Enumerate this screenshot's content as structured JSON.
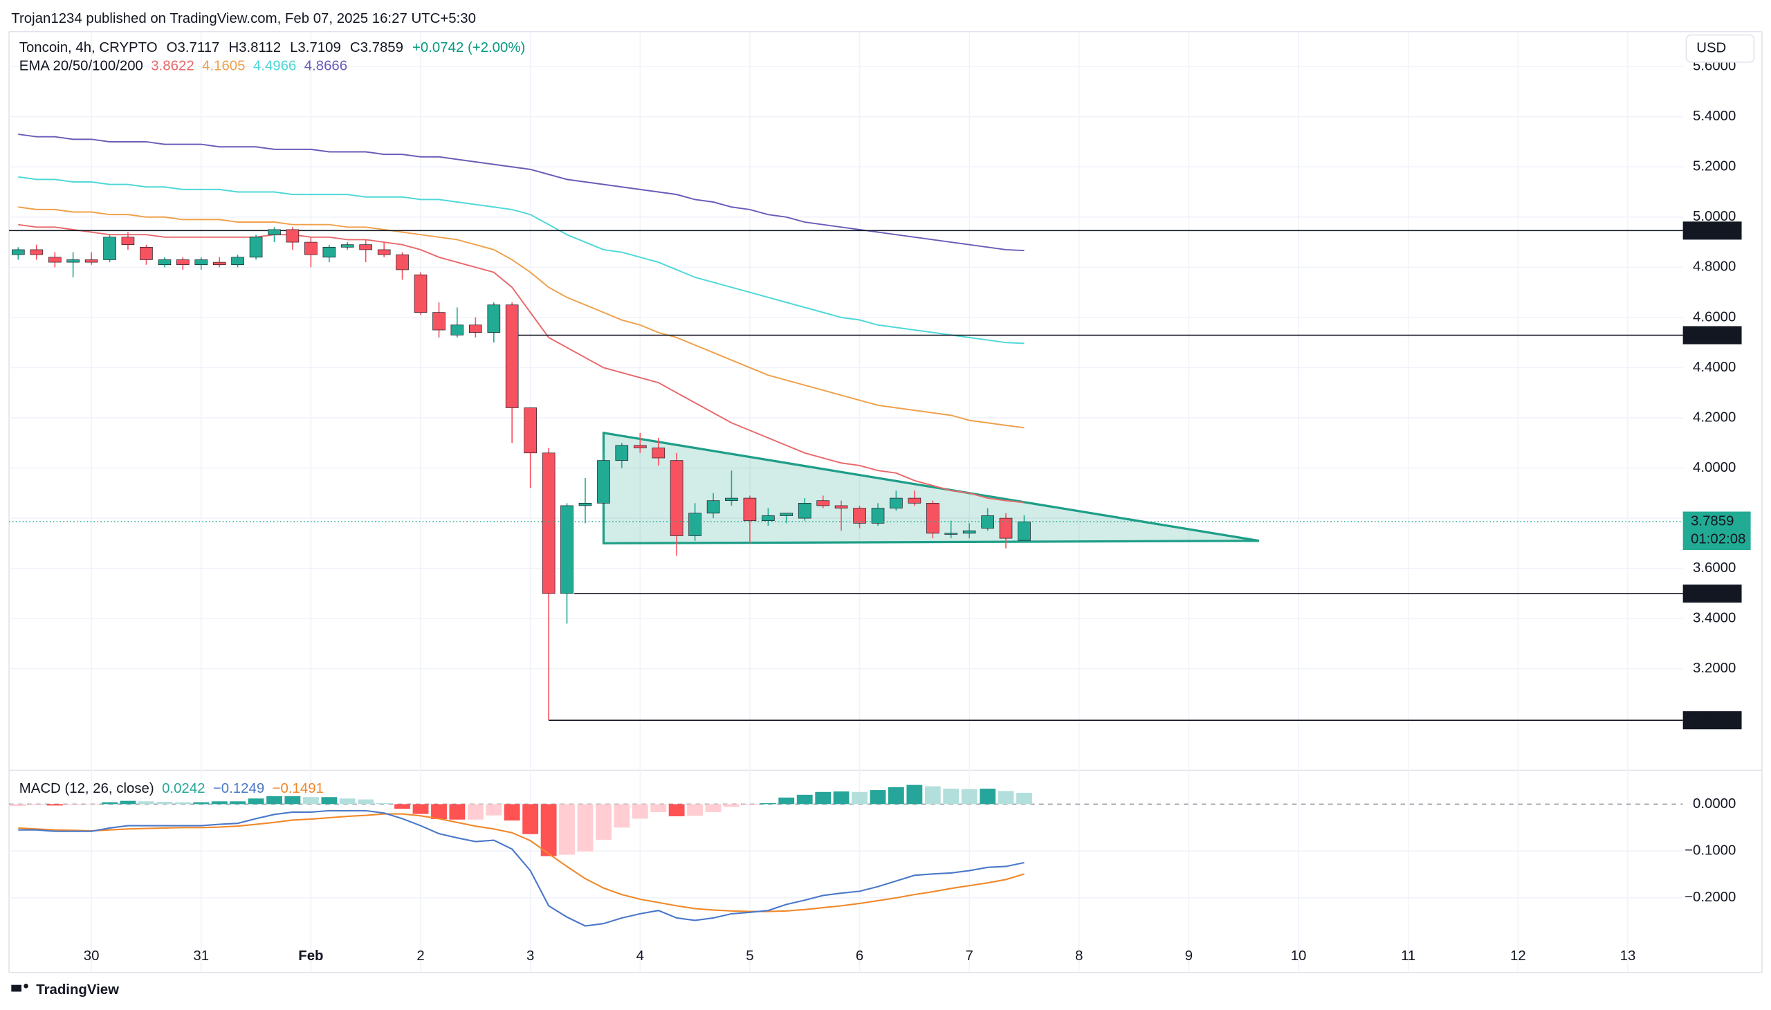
{
  "header": {
    "publisher": "Trojan1234 published on TradingView.com, Feb 07, 2025 16:27 UTC+5:30",
    "logo": "TradingView"
  },
  "chart_data": [
    {
      "type": "candlestick",
      "symbol": "Toncoin, 4h, CRYPTO",
      "ohlc_labels": [
        "O3.7117",
        "H3.8112",
        "L3.7109",
        "C3.7859"
      ],
      "change": "+0.0742 (+2.00%)",
      "change_color": "#089981",
      "currency": "USD",
      "x": [
        -0.667,
        -0.5,
        -0.333,
        -0.167,
        0,
        0.167,
        0.333,
        0.5,
        0.667,
        0.833,
        1,
        1.167,
        1.333,
        1.5,
        1.667,
        1.833,
        2,
        2.167,
        2.333,
        2.5,
        2.667,
        2.833,
        3,
        3.167,
        3.333,
        3.5,
        3.667,
        3.833,
        4,
        4.167,
        4.333,
        4.5,
        4.667,
        4.833,
        5,
        5.167,
        5.333,
        5.5,
        5.667,
        5.833,
        6,
        6.167,
        6.333,
        6.5,
        6.667,
        6.833,
        7,
        7.167,
        7.333,
        7.5,
        7.667,
        7.833,
        8,
        8.167,
        8.333,
        8.5
      ],
      "open": [
        4.85,
        4.87,
        4.84,
        4.82,
        4.83,
        4.83,
        4.92,
        4.88,
        4.81,
        4.83,
        4.81,
        4.82,
        4.81,
        4.84,
        4.93,
        4.95,
        4.9,
        4.84,
        4.88,
        4.89,
        4.87,
        4.85,
        4.77,
        4.62,
        4.53,
        4.57,
        4.54,
        4.65,
        4.24,
        4.06,
        3.5,
        3.85,
        3.86,
        4.03,
        4.09,
        4.08,
        4.03,
        3.73,
        3.82,
        3.87,
        3.88,
        3.79,
        3.81,
        3.8,
        3.87,
        3.85,
        3.84,
        3.78,
        3.84,
        3.88,
        3.86,
        3.74,
        3.74,
        3.76,
        3.8,
        3.7117
      ],
      "high": [
        4.88,
        4.89,
        4.86,
        4.86,
        4.86,
        4.93,
        4.94,
        4.89,
        4.84,
        4.84,
        4.84,
        4.84,
        4.85,
        4.93,
        4.96,
        4.96,
        4.92,
        4.89,
        4.9,
        4.91,
        4.9,
        4.86,
        4.78,
        4.66,
        4.64,
        4.6,
        4.66,
        4.66,
        4.24,
        4.08,
        3.86,
        3.96,
        4.07,
        4.1,
        4.14,
        4.12,
        4.06,
        3.86,
        3.9,
        3.99,
        3.89,
        3.84,
        3.82,
        3.88,
        3.89,
        3.87,
        3.85,
        3.86,
        3.91,
        3.91,
        3.87,
        3.79,
        3.78,
        3.84,
        3.82,
        3.8112
      ],
      "low": [
        4.83,
        4.83,
        4.8,
        4.76,
        4.81,
        4.82,
        4.87,
        4.81,
        4.8,
        4.79,
        4.79,
        4.8,
        4.8,
        4.83,
        4.9,
        4.87,
        4.8,
        4.82,
        4.87,
        4.82,
        4.84,
        4.75,
        4.61,
        4.52,
        4.52,
        4.52,
        4.5,
        4.1,
        3.92,
        2.9948,
        3.38,
        3.78,
        3.85,
        4.0,
        4.06,
        4.01,
        3.65,
        3.71,
        3.8,
        3.85,
        3.7,
        3.77,
        3.78,
        3.79,
        3.84,
        3.75,
        3.76,
        3.77,
        3.83,
        3.85,
        3.72,
        3.72,
        3.72,
        3.75,
        3.68,
        3.7109
      ],
      "close": [
        4.87,
        4.85,
        4.82,
        4.83,
        4.82,
        4.92,
        4.89,
        4.83,
        4.83,
        4.81,
        4.83,
        4.81,
        4.84,
        4.92,
        4.95,
        4.9,
        4.85,
        4.88,
        4.89,
        4.87,
        4.85,
        4.79,
        4.62,
        4.55,
        4.57,
        4.54,
        4.65,
        4.24,
        4.06,
        3.4996,
        3.85,
        3.86,
        4.03,
        4.09,
        4.08,
        4.04,
        3.73,
        3.82,
        3.87,
        3.88,
        3.79,
        3.81,
        3.82,
        3.86,
        3.85,
        3.84,
        3.78,
        3.84,
        3.88,
        3.86,
        3.74,
        3.74,
        3.75,
        3.81,
        3.72,
        3.7859
      ],
      "up_color": "#22ab94",
      "down_color": "#f7525f",
      "ema_label": "EMA 20/50/100/200",
      "series": [
        {
          "color": "#e8696b",
          "values": [
            4.97,
            4.96,
            4.96,
            4.95,
            4.94,
            4.93,
            4.93,
            4.93,
            4.92,
            4.92,
            4.92,
            4.92,
            4.92,
            4.92,
            4.93,
            4.93,
            4.92,
            4.92,
            4.91,
            4.91,
            4.9,
            4.89,
            4.87,
            4.84,
            4.82,
            4.8,
            4.78,
            4.72,
            4.62,
            4.52,
            4.48,
            4.44,
            4.4,
            4.38,
            4.36,
            4.34,
            4.3,
            4.26,
            4.22,
            4.18,
            4.15,
            4.12,
            4.09,
            4.06,
            4.04,
            4.02,
            4.01,
            3.99,
            3.98,
            3.95,
            3.93,
            3.91,
            3.9,
            3.88,
            3.87,
            3.8622
          ]
        },
        {
          "color": "#f0a04b",
          "values": [
            5.04,
            5.03,
            5.03,
            5.02,
            5.02,
            5.01,
            5.01,
            5.0,
            5.0,
            4.99,
            4.99,
            4.99,
            4.98,
            4.98,
            4.98,
            4.97,
            4.97,
            4.97,
            4.96,
            4.96,
            4.95,
            4.94,
            4.93,
            4.92,
            4.91,
            4.89,
            4.87,
            4.83,
            4.78,
            4.72,
            4.68,
            4.65,
            4.62,
            4.59,
            4.57,
            4.54,
            4.52,
            4.49,
            4.46,
            4.43,
            4.4,
            4.37,
            4.35,
            4.33,
            4.31,
            4.29,
            4.27,
            4.25,
            4.24,
            4.23,
            4.22,
            4.21,
            4.19,
            4.18,
            4.17,
            4.1605
          ]
        },
        {
          "color": "#4fd8d8",
          "values": [
            5.16,
            5.15,
            5.15,
            5.14,
            5.14,
            5.13,
            5.13,
            5.12,
            5.12,
            5.11,
            5.11,
            5.11,
            5.1,
            5.1,
            5.1,
            5.09,
            5.09,
            5.09,
            5.09,
            5.08,
            5.08,
            5.08,
            5.07,
            5.07,
            5.06,
            5.05,
            5.04,
            5.03,
            5.01,
            4.97,
            4.93,
            4.9,
            4.87,
            4.86,
            4.84,
            4.82,
            4.79,
            4.76,
            4.74,
            4.72,
            4.7,
            4.68,
            4.66,
            4.64,
            4.62,
            4.6,
            4.59,
            4.57,
            4.56,
            4.55,
            4.54,
            4.53,
            4.52,
            4.51,
            4.5,
            4.4966
          ]
        },
        {
          "color": "#6a5cb8",
          "values": [
            5.33,
            5.32,
            5.32,
            5.31,
            5.31,
            5.3,
            5.3,
            5.3,
            5.29,
            5.29,
            5.29,
            5.28,
            5.28,
            5.28,
            5.27,
            5.27,
            5.27,
            5.26,
            5.26,
            5.26,
            5.25,
            5.25,
            5.24,
            5.24,
            5.23,
            5.22,
            5.21,
            5.2,
            5.19,
            5.17,
            5.15,
            5.14,
            5.13,
            5.12,
            5.11,
            5.1,
            5.09,
            5.07,
            5.06,
            5.04,
            5.03,
            5.01,
            5.0,
            4.98,
            4.97,
            4.96,
            4.95,
            4.94,
            4.93,
            4.92,
            4.91,
            4.9,
            4.89,
            4.88,
            4.87,
            4.8666
          ]
        }
      ],
      "levels": [
        {
          "value": 4.9461
        },
        {
          "value": 4.5293,
          "from": 3.87
        },
        {
          "value": 3.4996,
          "from": 4.4
        },
        {
          "value": 2.9948,
          "from": 4.167
        }
      ],
      "pattern": {
        "points": [
          [
            4.667,
            4.14
          ],
          [
            10.64,
            3.71
          ],
          [
            4.667,
            3.7
          ]
        ],
        "color": "#1e9e88"
      },
      "last_price": 3.7859,
      "countdown": "01:02:08",
      "xlim": [
        -0.73,
        14.42
      ],
      "xticks": [
        {
          "value": 0,
          "label": "30"
        },
        {
          "value": 1,
          "label": "31"
        },
        {
          "value": 2,
          "label": "Feb"
        },
        {
          "value": 3,
          "label": "2"
        },
        {
          "value": 4,
          "label": "3"
        },
        {
          "value": 5,
          "label": "4"
        },
        {
          "value": 6,
          "label": "5"
        },
        {
          "value": 7,
          "label": "6"
        },
        {
          "value": 8,
          "label": "7"
        },
        {
          "value": 9,
          "label": "8"
        },
        {
          "value": 10,
          "label": "9"
        },
        {
          "value": 11,
          "label": "10"
        },
        {
          "value": 12,
          "label": "11"
        },
        {
          "value": 13,
          "label": "12"
        },
        {
          "value": 14,
          "label": "13"
        }
      ],
      "ylim": [
        2.8,
        5.73
      ],
      "yticks": [
        {
          "value": 5.6,
          "label": "5.6000"
        },
        {
          "value": 5.4,
          "label": "5.4000"
        },
        {
          "value": 5.2,
          "label": "5.2000"
        },
        {
          "value": 5.0,
          "label": "5.0000"
        },
        {
          "value": 4.8,
          "label": "4.8000"
        },
        {
          "value": 4.6,
          "label": "4.6000"
        },
        {
          "value": 4.4,
          "label": "4.4000"
        },
        {
          "value": 4.2,
          "label": "4.2000"
        },
        {
          "value": 4.0,
          "label": "4.0000"
        },
        {
          "value": 3.8,
          "label": "3.8000"
        },
        {
          "value": 3.6,
          "label": "3.6000"
        },
        {
          "value": 3.4,
          "label": "3.4000"
        },
        {
          "value": 3.2,
          "label": "3.2000"
        }
      ],
      "grid": true
    },
    {
      "type": "macd",
      "label": "MACD (12, 26, close)",
      "macd_label": "−0.1249",
      "signal_label": "−0.1491",
      "histogram": [
        -0.004,
        -0.002,
        -0.003,
        -0.002,
        -0.001,
        0.004,
        0.007,
        0.006,
        0.005,
        0.004,
        0.004,
        0.006,
        0.006,
        0.012,
        0.017,
        0.017,
        0.015,
        0.015,
        0.012,
        0.01,
        0.002,
        -0.01,
        -0.021,
        -0.032,
        -0.033,
        -0.033,
        -0.024,
        -0.035,
        -0.064,
        -0.111,
        -0.108,
        -0.101,
        -0.076,
        -0.05,
        -0.031,
        -0.017,
        -0.026,
        -0.025,
        -0.017,
        -0.006,
        -0.002,
        0.002,
        0.014,
        0.02,
        0.026,
        0.027,
        0.026,
        0.03,
        0.036,
        0.041,
        0.038,
        0.033,
        0.032,
        0.033,
        0.028,
        0.0242
      ],
      "macd": [
        -0.055,
        -0.055,
        -0.058,
        -0.058,
        -0.058,
        -0.051,
        -0.046,
        -0.046,
        -0.046,
        -0.046,
        -0.046,
        -0.043,
        -0.041,
        -0.031,
        -0.022,
        -0.017,
        -0.017,
        -0.014,
        -0.014,
        -0.014,
        -0.019,
        -0.031,
        -0.046,
        -0.063,
        -0.072,
        -0.08,
        -0.077,
        -0.096,
        -0.142,
        -0.217,
        -0.241,
        -0.26,
        -0.255,
        -0.243,
        -0.234,
        -0.227,
        -0.243,
        -0.248,
        -0.243,
        -0.234,
        -0.231,
        -0.227,
        -0.214,
        -0.205,
        -0.195,
        -0.19,
        -0.186,
        -0.176,
        -0.164,
        -0.152,
        -0.149,
        -0.147,
        -0.142,
        -0.135,
        -0.133,
        -0.1249
      ],
      "signal": [
        -0.051,
        -0.053,
        -0.055,
        -0.056,
        -0.057,
        -0.055,
        -0.053,
        -0.052,
        -0.051,
        -0.05,
        -0.05,
        -0.049,
        -0.047,
        -0.043,
        -0.039,
        -0.034,
        -0.032,
        -0.029,
        -0.026,
        -0.024,
        -0.021,
        -0.021,
        -0.025,
        -0.031,
        -0.039,
        -0.047,
        -0.053,
        -0.061,
        -0.078,
        -0.106,
        -0.133,
        -0.159,
        -0.179,
        -0.193,
        -0.203,
        -0.21,
        -0.217,
        -0.223,
        -0.226,
        -0.228,
        -0.229,
        -0.229,
        -0.228,
        -0.225,
        -0.221,
        -0.217,
        -0.212,
        -0.206,
        -0.2,
        -0.193,
        -0.187,
        -0.18,
        -0.174,
        -0.168,
        -0.161,
        -0.1491
      ],
      "macd_color": "#4a78c8",
      "signal_color": "#f0882a",
      "hist_colors": {
        "pos_up": "#26a69a",
        "pos_down": "#b2dfdb",
        "neg_down": "#ff5252",
        "neg_up": "#ffcdd2"
      },
      "ylim": [
        -0.352,
        0.065
      ],
      "yticks": [
        {
          "value": 0,
          "label": "0.0000"
        },
        {
          "value": -0.1,
          "label": "−0.1000"
        },
        {
          "value": -0.2,
          "label": "−0.2000"
        }
      ]
    }
  ]
}
